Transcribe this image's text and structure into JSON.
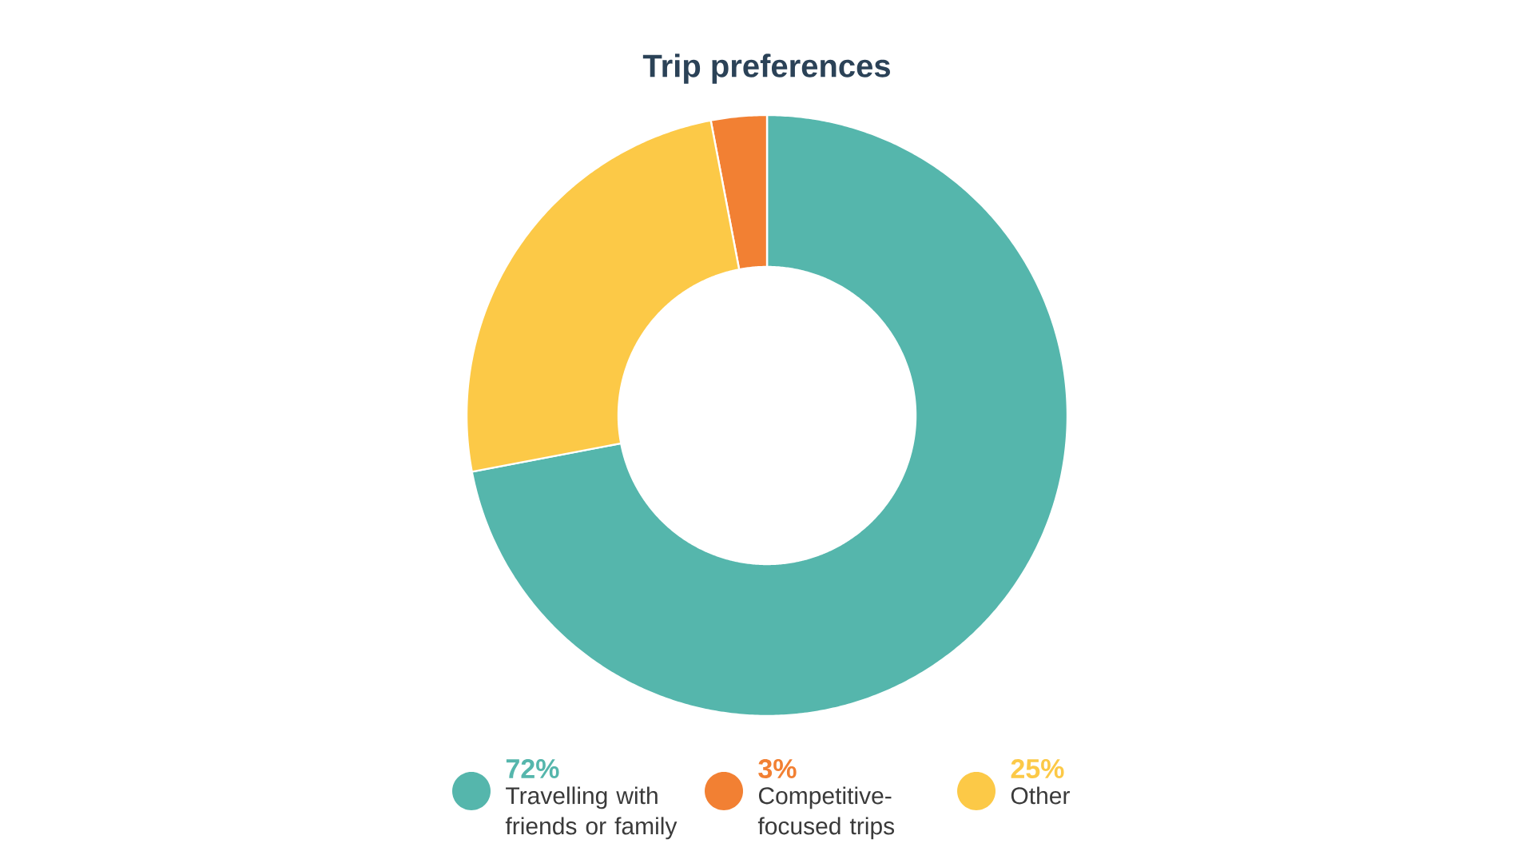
{
  "chart_data": {
    "type": "donut",
    "title": "Trip preferences",
    "categories": [
      "Travelling with friends or family",
      "Competitive-focused trips",
      "Other"
    ],
    "values": [
      72,
      3,
      25
    ],
    "value_labels": [
      "72%",
      "3%",
      "25%"
    ],
    "colors": [
      "#55b6ac",
      "#f28033",
      "#fcc947"
    ],
    "legend": "bottom"
  }
}
